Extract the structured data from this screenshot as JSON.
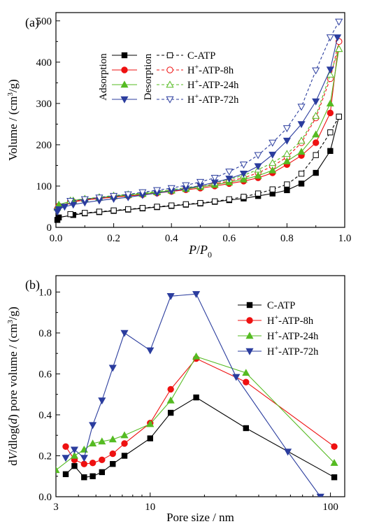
{
  "chart_data": [
    {
      "type": "line",
      "panel_label": "(a)",
      "xlabel": "P/P0",
      "ylabel": "Volume / (cm3/g)",
      "xlim": [
        0.0,
        1.0
      ],
      "ylim": [
        0,
        520
      ],
      "xticks": [
        "0.0",
        "0.2",
        "0.4",
        "0.6",
        "0.8",
        "1.0"
      ],
      "yticks": [
        "0",
        "100",
        "200",
        "300",
        "400",
        "500"
      ],
      "legend_group_labels": [
        "Adsorption",
        "Desorption"
      ],
      "legend_placement": "upper-center",
      "series": [
        {
          "name": "C-ATP",
          "label_base": "C-ATP",
          "label_sup": "",
          "label_rest": "",
          "color": "#000000",
          "marker": "square",
          "branch": "adsorption",
          "x": [
            0.005,
            0.01,
            0.06,
            0.1,
            0.15,
            0.2,
            0.25,
            0.3,
            0.35,
            0.4,
            0.45,
            0.5,
            0.55,
            0.6,
            0.65,
            0.7,
            0.75,
            0.8,
            0.85,
            0.9,
            0.95,
            0.98
          ],
          "y": [
            18,
            24,
            30,
            34,
            37,
            40,
            43,
            46,
            49,
            52,
            55,
            58,
            62,
            66,
            70,
            76,
            82,
            90,
            106,
            132,
            185,
            268
          ]
        },
        {
          "name": "C-ATP",
          "label_base": "C-ATP",
          "label_sup": "",
          "label_rest": "",
          "color": "#000000",
          "marker": "square",
          "branch": "desorption",
          "x": [
            0.98,
            0.95,
            0.9,
            0.85,
            0.8,
            0.75,
            0.7,
            0.65,
            0.6,
            0.55,
            0.5,
            0.45,
            0.4,
            0.35,
            0.3,
            0.25,
            0.2,
            0.15,
            0.1,
            0.05
          ],
          "y": [
            268,
            230,
            175,
            130,
            104,
            92,
            82,
            74,
            68,
            63,
            59,
            56,
            53,
            50,
            47,
            44,
            41,
            38,
            35,
            32
          ]
        },
        {
          "name": "H+-ATP-8h",
          "label_base": "H",
          "label_sup": "+",
          "label_rest": "-ATP-8h",
          "color": "#ee1111",
          "marker": "circle",
          "branch": "adsorption",
          "x": [
            0.005,
            0.01,
            0.06,
            0.1,
            0.15,
            0.2,
            0.25,
            0.3,
            0.35,
            0.4,
            0.45,
            0.5,
            0.55,
            0.6,
            0.65,
            0.7,
            0.75,
            0.8,
            0.85,
            0.9,
            0.95,
            0.98
          ],
          "y": [
            45,
            52,
            62,
            66,
            70,
            73,
            76,
            79,
            83,
            87,
            91,
            95,
            100,
            106,
            112,
            120,
            132,
            152,
            174,
            205,
            277,
            450
          ]
        },
        {
          "name": "H+-ATP-8h",
          "label_base": "H",
          "label_sup": "+",
          "label_rest": "-ATP-8h",
          "color": "#ee1111",
          "marker": "circle",
          "branch": "desorption",
          "x": [
            0.98,
            0.95,
            0.9,
            0.85,
            0.8,
            0.75,
            0.7,
            0.65,
            0.6,
            0.55,
            0.5,
            0.45,
            0.4,
            0.35,
            0.3,
            0.25,
            0.2,
            0.15,
            0.1,
            0.05
          ],
          "y": [
            450,
            360,
            265,
            205,
            170,
            148,
            132,
            120,
            112,
            105,
            98,
            93,
            88,
            84,
            80,
            77,
            74,
            71,
            67,
            63
          ]
        },
        {
          "name": "H+-ATP-24h",
          "label_base": "H",
          "label_sup": "+",
          "label_rest": "-ATP-24h",
          "color": "#55bb22",
          "marker": "triangle-up",
          "branch": "adsorption",
          "x": [
            0.005,
            0.01,
            0.06,
            0.1,
            0.15,
            0.2,
            0.25,
            0.3,
            0.35,
            0.4,
            0.45,
            0.5,
            0.55,
            0.6,
            0.65,
            0.7,
            0.75,
            0.8,
            0.85,
            0.9,
            0.95,
            0.98
          ],
          "y": [
            48,
            55,
            65,
            69,
            72,
            75,
            78,
            81,
            85,
            89,
            93,
            98,
            103,
            109,
            116,
            125,
            138,
            160,
            183,
            225,
            300,
            432
          ]
        },
        {
          "name": "H+-ATP-24h",
          "label_base": "H",
          "label_sup": "+",
          "label_rest": "-ATP-24h",
          "color": "#55bb22",
          "marker": "triangle-up",
          "branch": "desorption",
          "x": [
            0.98,
            0.95,
            0.9,
            0.85,
            0.8,
            0.75,
            0.7,
            0.65,
            0.6,
            0.55,
            0.5,
            0.45,
            0.4,
            0.35,
            0.3,
            0.25,
            0.2,
            0.15,
            0.1,
            0.05
          ],
          "y": [
            432,
            370,
            270,
            210,
            178,
            156,
            140,
            126,
            116,
            108,
            101,
            96,
            91,
            87,
            83,
            80,
            77,
            73,
            69,
            65
          ]
        },
        {
          "name": "H+-ATP-72h",
          "label_base": "H",
          "label_sup": "+",
          "label_rest": "-ATP-72h",
          "color": "#2b3d9e",
          "marker": "triangle-down",
          "branch": "adsorption",
          "x": [
            0.005,
            0.01,
            0.03,
            0.06,
            0.1,
            0.15,
            0.2,
            0.25,
            0.3,
            0.35,
            0.4,
            0.45,
            0.5,
            0.55,
            0.6,
            0.65,
            0.7,
            0.75,
            0.8,
            0.85,
            0.9,
            0.95,
            0.975
          ],
          "y": [
            38,
            44,
            50,
            55,
            60,
            65,
            69,
            73,
            78,
            83,
            88,
            94,
            101,
            109,
            118,
            130,
            148,
            176,
            210,
            250,
            305,
            382,
            460
          ]
        },
        {
          "name": "H+-ATP-72h",
          "label_base": "H",
          "label_sup": "+",
          "label_rest": "-ATP-72h",
          "color": "#2b3d9e",
          "marker": "triangle-down",
          "branch": "desorption",
          "x": [
            0.98,
            0.95,
            0.9,
            0.85,
            0.8,
            0.75,
            0.7,
            0.65,
            0.6,
            0.55,
            0.5,
            0.45,
            0.4,
            0.35,
            0.3,
            0.25,
            0.2,
            0.15,
            0.1,
            0.05
          ],
          "y": [
            498,
            460,
            380,
            292,
            240,
            205,
            175,
            152,
            135,
            120,
            110,
            102,
            95,
            90,
            85,
            80,
            76,
            72,
            68,
            64
          ]
        }
      ]
    },
    {
      "type": "line",
      "panel_label": "(b)",
      "xlabel": "Pore size / nm",
      "ylabel": "dV/dlog(d) pore volume / (cm3/g)",
      "xscale": "log",
      "xlim": [
        3,
        120
      ],
      "ylim": [
        0.0,
        1.08
      ],
      "xticks": [
        "3",
        "10",
        "100"
      ],
      "yticks": [
        "0.0",
        "0.2",
        "0.4",
        "0.6",
        "0.8",
        "1.0"
      ],
      "legend_placement": "upper-right",
      "series": [
        {
          "name": "C-ATP",
          "label_base": "C-ATP",
          "label_sup": "",
          "label_rest": "",
          "color": "#000000",
          "marker": "square",
          "x": [
            3.4,
            3.8,
            4.3,
            4.8,
            5.4,
            6.2,
            7.2,
            10,
            13,
            18,
            34,
            105
          ],
          "y": [
            0.11,
            0.15,
            0.095,
            0.1,
            0.12,
            0.16,
            0.2,
            0.285,
            0.41,
            0.485,
            0.335,
            0.095
          ]
        },
        {
          "name": "H+-ATP-8h",
          "label_base": "H",
          "label_sup": "+",
          "label_rest": "-ATP-8h",
          "color": "#ee1111",
          "marker": "circle",
          "x": [
            3.4,
            3.8,
            4.3,
            4.8,
            5.4,
            6.2,
            7.2,
            10,
            13,
            18,
            34,
            105
          ],
          "y": [
            0.245,
            0.18,
            0.16,
            0.165,
            0.18,
            0.21,
            0.26,
            0.36,
            0.525,
            0.675,
            0.56,
            0.245
          ]
        },
        {
          "name": "H+-ATP-24h",
          "label_base": "H",
          "label_sup": "+",
          "label_rest": "-ATP-24h",
          "color": "#55bb22",
          "marker": "triangle-up",
          "x": [
            3.0,
            3.8,
            4.3,
            4.8,
            5.4,
            6.2,
            7.2,
            10,
            13,
            18,
            34,
            105
          ],
          "y": [
            0.13,
            0.2,
            0.23,
            0.26,
            0.27,
            0.28,
            0.3,
            0.355,
            0.47,
            0.685,
            0.605,
            0.165
          ]
        },
        {
          "name": "H+-ATP-72h",
          "label_base": "H",
          "label_sup": "+",
          "label_rest": "-ATP-72h",
          "color": "#2b3d9e",
          "marker": "triangle-down",
          "x": [
            3.4,
            3.8,
            4.3,
            4.8,
            5.4,
            6.2,
            7.2,
            10,
            13,
            18,
            30,
            58,
            88
          ],
          "y": [
            0.19,
            0.23,
            0.19,
            0.35,
            0.47,
            0.63,
            0.8,
            0.715,
            0.98,
            0.99,
            0.585,
            0.22,
            0.0
          ]
        }
      ]
    }
  ]
}
